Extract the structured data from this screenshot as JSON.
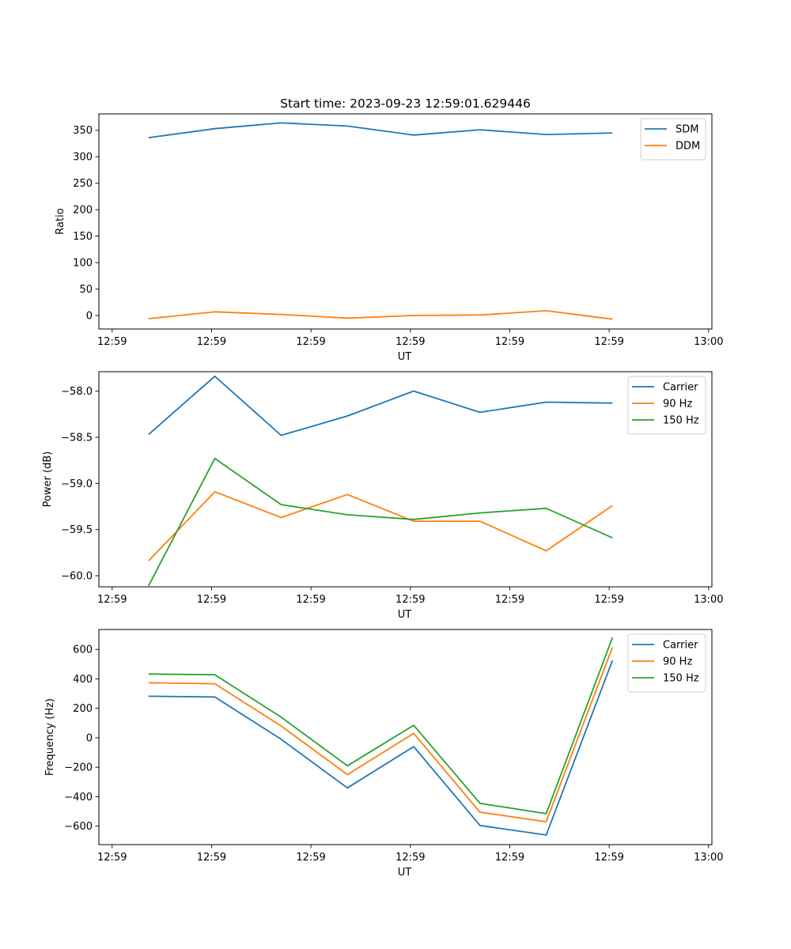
{
  "figure": {
    "title": "Start time: 2023-09-23 12:59:01.629446"
  },
  "chart_data": [
    {
      "type": "line",
      "xlabel": "UT",
      "ylabel": "Ratio",
      "xlim": [
        0,
        9.25
      ],
      "ylim": [
        -25.5,
        381
      ],
      "x": [
        0.75,
        1.75,
        2.75,
        3.75,
        4.75,
        5.75,
        6.75,
        7.75
      ],
      "xticks": [
        0.2,
        1.7,
        3.2,
        4.7,
        6.2,
        7.7,
        9.2
      ],
      "xtick_labels": [
        "12:59",
        "12:59",
        "12:59",
        "12:59",
        "12:59",
        "12:59",
        "13:00"
      ],
      "yticks": [
        0,
        50,
        100,
        150,
        200,
        250,
        300,
        350
      ],
      "ytick_labels": [
        "0",
        "50",
        "100",
        "150",
        "200",
        "250",
        "300",
        "350"
      ],
      "legend_position": "top-right",
      "series": [
        {
          "name": "SDM",
          "color": "#1f77b4",
          "values": [
            336,
            353,
            364,
            358,
            341,
            351,
            342,
            345
          ]
        },
        {
          "name": "DDM",
          "color": "#ff7f0e",
          "values": [
            -6,
            7,
            2,
            -5,
            0,
            1,
            9,
            -7
          ]
        }
      ]
    },
    {
      "type": "line",
      "xlabel": "UT",
      "ylabel": "Power (dB)",
      "xlim": [
        0,
        9.25
      ],
      "ylim": [
        -60.12,
        -57.79
      ],
      "x": [
        0.75,
        1.75,
        2.75,
        3.75,
        4.75,
        5.75,
        6.75,
        7.75
      ],
      "xticks": [
        0.2,
        1.7,
        3.2,
        4.7,
        6.2,
        7.7,
        9.2
      ],
      "xtick_labels": [
        "12:59",
        "12:59",
        "12:59",
        "12:59",
        "12:59",
        "12:59",
        "13:00"
      ],
      "yticks": [
        -60.0,
        -59.5,
        -59.0,
        -58.5,
        -58.0
      ],
      "ytick_labels": [
        "−60.0",
        "−59.5",
        "−59.0",
        "−58.5",
        "−58.0"
      ],
      "legend_position": "top-right",
      "series": [
        {
          "name": "Carrier",
          "color": "#1f77b4",
          "values": [
            -58.47,
            -57.84,
            -58.48,
            -58.27,
            -58.0,
            -58.23,
            -58.12,
            -58.13
          ]
        },
        {
          "name": "90 Hz",
          "color": "#ff7f0e",
          "values": [
            -59.84,
            -59.09,
            -59.37,
            -59.12,
            -59.41,
            -59.41,
            -59.73,
            -59.24
          ]
        },
        {
          "name": "150 Hz",
          "color": "#2ca02c",
          "values": [
            -60.11,
            -58.73,
            -59.23,
            -59.34,
            -59.39,
            -59.32,
            -59.27,
            -59.59
          ]
        }
      ]
    },
    {
      "type": "line",
      "xlabel": "UT",
      "ylabel": "Frequency (Hz)",
      "xlim": [
        0,
        9.25
      ],
      "ylim": [
        -725,
        735
      ],
      "x": [
        0.75,
        1.75,
        2.75,
        3.75,
        4.75,
        5.75,
        6.75,
        7.75
      ],
      "xticks": [
        0.2,
        1.7,
        3.2,
        4.7,
        6.2,
        7.7,
        9.2
      ],
      "xtick_labels": [
        "12:59",
        "12:59",
        "12:59",
        "12:59",
        "12:59",
        "12:59",
        "13:00"
      ],
      "yticks": [
        -600,
        -400,
        -200,
        0,
        200,
        400,
        600
      ],
      "ytick_labels": [
        "−600",
        "−400",
        "−200",
        "0",
        "200",
        "400",
        "600"
      ],
      "legend_position": "top-right",
      "series": [
        {
          "name": "Carrier",
          "color": "#1f77b4",
          "values": [
            282,
            277,
            -10,
            -340,
            -60,
            -595,
            -660,
            525
          ]
        },
        {
          "name": "90 Hz",
          "color": "#ff7f0e",
          "values": [
            373,
            367,
            80,
            -250,
            30,
            -505,
            -570,
            615
          ]
        },
        {
          "name": "150 Hz",
          "color": "#2ca02c",
          "values": [
            433,
            428,
            140,
            -190,
            85,
            -445,
            -515,
            680
          ]
        }
      ]
    }
  ]
}
